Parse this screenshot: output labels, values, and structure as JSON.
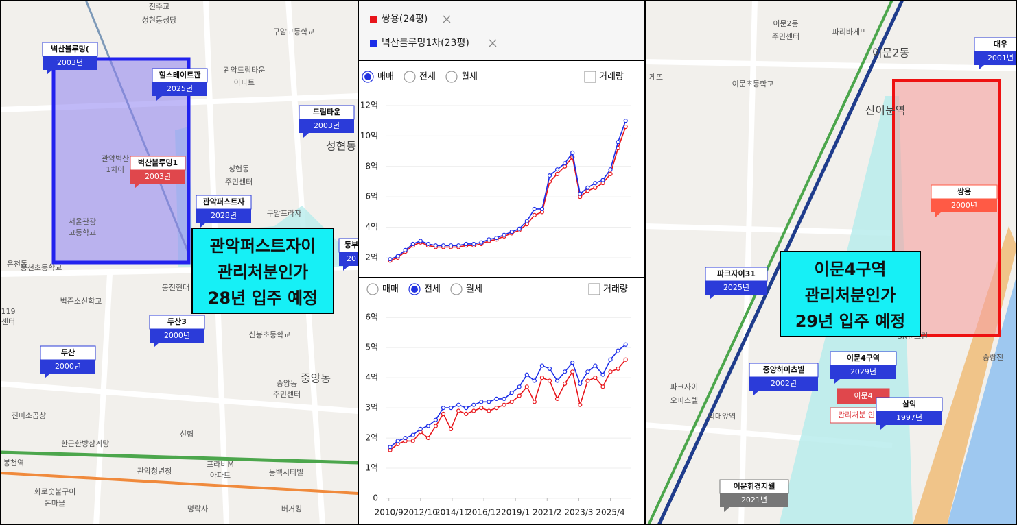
{
  "chart_data": [
    {
      "type": "line",
      "options": [
        "매매",
        "전세",
        "월세"
      ],
      "selected": 0,
      "volume_label": "거래량",
      "grid": true,
      "x": [
        2010.75,
        2011.25,
        2011.75,
        2012.25,
        2012.75,
        2013.25,
        2013.75,
        2014.25,
        2014.75,
        2015.25,
        2015.75,
        2016.25,
        2016.75,
        2017.25,
        2017.75,
        2018.25,
        2018.75,
        2019.25,
        2019.75,
        2020.25,
        2020.75,
        2021.25,
        2021.75,
        2022.25,
        2022.75,
        2023.25,
        2023.75,
        2024.25,
        2024.75,
        2025.25,
        2025.75,
        2026.25
      ],
      "xlim": [
        2010.5,
        2026.4
      ],
      "ylim": [
        0.8,
        12.4
      ],
      "yticks": [
        {
          "value": 2,
          "label": "2억"
        },
        {
          "value": 4,
          "label": "4억"
        },
        {
          "value": 6,
          "label": "6억"
        },
        {
          "value": 8,
          "label": "8억"
        },
        {
          "value": 10,
          "label": "10억"
        },
        {
          "value": 12,
          "label": "12억"
        }
      ],
      "series": [
        {
          "name": "쌍용(24평)",
          "color": "#e8151b",
          "values": [
            1.8,
            2.0,
            2.4,
            2.8,
            3.0,
            2.8,
            2.7,
            2.7,
            2.7,
            2.7,
            2.8,
            2.8,
            2.9,
            3.1,
            3.2,
            3.4,
            3.6,
            3.8,
            4.2,
            4.8,
            5.0,
            7.0,
            7.5,
            8.0,
            8.6,
            6.0,
            6.4,
            6.6,
            6.9,
            7.5,
            9.2,
            10.6
          ]
        },
        {
          "name": "벽산블루밍1차(23평)",
          "color": "#1c2ee8",
          "values": [
            1.9,
            2.1,
            2.5,
            2.9,
            3.1,
            2.9,
            2.8,
            2.8,
            2.8,
            2.8,
            2.9,
            2.9,
            3.0,
            3.2,
            3.3,
            3.5,
            3.7,
            3.9,
            4.4,
            5.2,
            5.2,
            7.4,
            7.8,
            8.2,
            8.9,
            6.2,
            6.6,
            6.9,
            7.1,
            7.8,
            9.6,
            11.0
          ]
        }
      ]
    },
    {
      "type": "line",
      "options": [
        "매매",
        "전세",
        "월세"
      ],
      "selected": 1,
      "volume_label": "거래량",
      "grid": true,
      "x": [
        2010.75,
        2011.25,
        2011.75,
        2012.25,
        2012.75,
        2013.25,
        2013.75,
        2014.25,
        2014.75,
        2015.25,
        2015.75,
        2016.25,
        2016.75,
        2017.25,
        2017.75,
        2018.25,
        2018.75,
        2019.25,
        2019.75,
        2020.25,
        2020.75,
        2021.25,
        2021.75,
        2022.25,
        2022.75,
        2023.25,
        2023.75,
        2024.25,
        2024.75,
        2025.25,
        2025.75,
        2026.25
      ],
      "xlim": [
        2010.5,
        2026.4
      ],
      "ylim": [
        0,
        6.3
      ],
      "xticks": [
        {
          "value": 2010.667,
          "label": "2010/9"
        },
        {
          "value": 2012.75,
          "label": "2012/10"
        },
        {
          "value": 2014.833,
          "label": "2014/11"
        },
        {
          "value": 2016.917,
          "label": "2016/12"
        },
        {
          "value": 2019.0,
          "label": "2019/1"
        },
        {
          "value": 2021.083,
          "label": "2021/2"
        },
        {
          "value": 2023.167,
          "label": "2023/3"
        },
        {
          "value": 2025.25,
          "label": "2025/4"
        }
      ],
      "yticks": [
        0,
        {
          "value": 1,
          "label": "1억"
        },
        {
          "value": 2,
          "label": "2억"
        },
        {
          "value": 3,
          "label": "3억"
        },
        {
          "value": 4,
          "label": "4억"
        },
        {
          "value": 5,
          "label": "5억"
        },
        {
          "value": 6,
          "label": "6억"
        }
      ],
      "series": [
        {
          "color": "#e8151b",
          "values": [
            1.6,
            1.8,
            1.9,
            1.9,
            2.2,
            2.0,
            2.4,
            2.8,
            2.3,
            2.9,
            2.8,
            2.9,
            3.0,
            2.9,
            3.0,
            3.1,
            3.2,
            3.4,
            3.7,
            3.2,
            4.0,
            3.9,
            3.3,
            3.8,
            4.2,
            3.1,
            3.9,
            4.0,
            3.7,
            4.2,
            4.3,
            4.6
          ]
        },
        {
          "color": "#1c2ee8",
          "values": [
            1.7,
            1.9,
            2.0,
            2.1,
            2.3,
            2.4,
            2.6,
            3.0,
            3.0,
            3.1,
            3.0,
            3.1,
            3.2,
            3.2,
            3.3,
            3.3,
            3.5,
            3.7,
            4.1,
            3.9,
            4.4,
            4.3,
            3.9,
            4.2,
            4.5,
            3.8,
            4.2,
            4.4,
            4.1,
            4.6,
            4.9,
            5.1
          ]
        }
      ]
    }
  ],
  "left_map": {
    "places": [
      "천주교",
      "성현동성당",
      "구암고등학교",
      "관악드림타운",
      "아파트",
      "성현동",
      "성현동",
      "주민센터",
      "구암프라자",
      "관악벽산",
      "1차아",
      "서울관광",
      "고등학교",
      "은천동",
      "봉천초등학교",
      "봉천현대",
      "법즌소신학교",
      "119",
      "센터",
      "신봉초등학교",
      "중앙동",
      "중앙동",
      "주민센터",
      "진미소곱창",
      "신협",
      "한근한방삼계탕",
      "봉천역",
      "관악청년청",
      "프라비M",
      "아파트",
      "동백시티빌",
      "화로숯불구이",
      "돈마을",
      "명락사",
      "버거킹"
    ],
    "markers": [
      {
        "name": "벽산블루밍(",
        "year": "2003년",
        "color": "#2b3bd9"
      },
      {
        "name": "힐스테이트관",
        "year": "2025년",
        "color": "#2b3bd9"
      },
      {
        "name": "벽산블루밍1",
        "year": "2003년",
        "color": "#e0474c"
      },
      {
        "name": "드림타운",
        "year": "2003년",
        "color": "#2b3bd9"
      },
      {
        "name": "관악퍼스트자",
        "year": "2028년",
        "color": "#2b3bd9"
      },
      {
        "name": "두산3",
        "year": "2000년",
        "color": "#2b3bd9"
      },
      {
        "name": "두산",
        "year": "2000년",
        "color": "#2b3bd9"
      },
      {
        "name": "동부",
        "year": "20",
        "color": "#2b3bd9"
      }
    ],
    "annotation": [
      "관악퍼스트자이",
      "관리처분인가",
      "28년 입주 예정"
    ]
  },
  "right_map": {
    "places": [
      "이문2동",
      "주민센터",
      "파리바게뜨",
      "이문2동",
      "게뜨",
      "이문초등학교",
      "신이문역",
      "파크자이",
      "오피스텔",
      "외대앞역",
      "중랑천",
      "SK텐크린",
      "이문4",
      "관리처분 인"
    ],
    "markers": [
      {
        "name": "대우",
        "year": "2001년",
        "color": "#2b3bd9"
      },
      {
        "name": "파크자이31",
        "year": "2025년",
        "color": "#2b3bd9"
      },
      {
        "name": "이문4구역",
        "year": "2029년",
        "color": "#2b3bd9"
      },
      {
        "name": "중앙하이츠빌",
        "year": "2002년",
        "color": "#2b3bd9"
      },
      {
        "name": "삼익",
        "year": "1997년",
        "color": "#2b3bd9"
      },
      {
        "name": "이문휘경지웰",
        "year": "2021년",
        "color": "#777777"
      },
      {
        "name": "쌍용",
        "year": "2000년",
        "color": "#ff5a45"
      }
    ],
    "annotation": [
      "이문4구역",
      "관리처분인가",
      "29년 입주 예정"
    ]
  }
}
